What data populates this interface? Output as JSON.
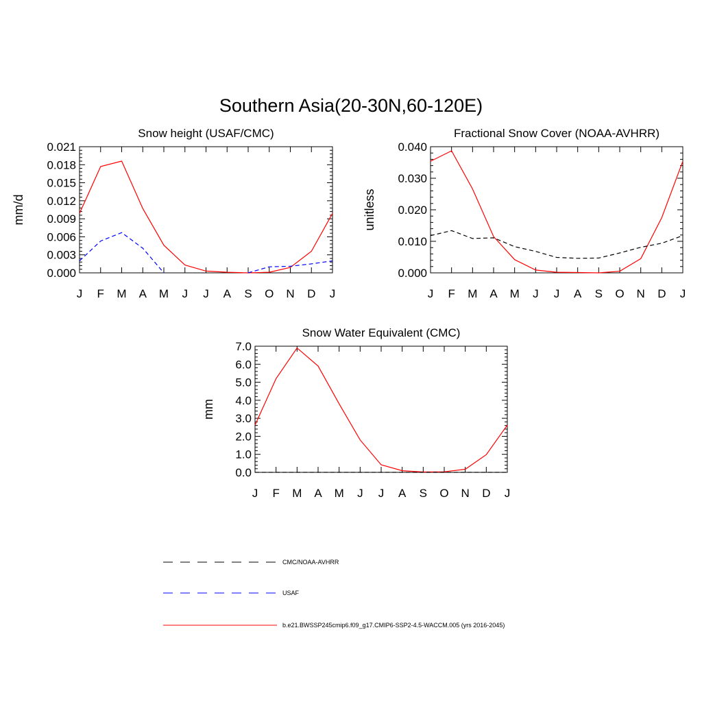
{
  "figure_title": "Southern Asia(20-30N,60-120E)",
  "months": [
    "J",
    "F",
    "M",
    "A",
    "M",
    "J",
    "J",
    "A",
    "S",
    "O",
    "N",
    "D",
    "J"
  ],
  "colors": {
    "model": "#ff0000",
    "usaf": "#0000ff",
    "obs": "#000000"
  },
  "legend": [
    {
      "label": "CMC/NOAA-AVHRR",
      "style": "dashed",
      "color": "#000000"
    },
    {
      "label": "USAF",
      "style": "dashed",
      "color": "#0000ff"
    },
    {
      "label": "b.e21.BWSSP245cmip6.f09_g17.CMIP6-SSP2-4.5-WACCM.005 (yrs 2016-2045)",
      "style": "solid",
      "color": "#ff0000"
    }
  ],
  "chart_data": [
    {
      "type": "line",
      "title": "Snow height (USAF/CMC)",
      "xlabel": "",
      "ylabel": "mm/d",
      "ylim": [
        0,
        0.021
      ],
      "yticks": [
        "0.000",
        "0.003",
        "0.006",
        "0.009",
        "0.012",
        "0.015",
        "0.018",
        "0.021"
      ],
      "x": [
        "J",
        "F",
        "M",
        "A",
        "M",
        "J",
        "J",
        "A",
        "S",
        "O",
        "N",
        "D",
        "J"
      ],
      "series": [
        {
          "role": "model",
          "style": "solid",
          "color": "#ff0000",
          "values": [
            0.0099,
            0.0177,
            0.0186,
            0.0107,
            0.0046,
            0.0013,
            0.0003,
            0.0001,
            0.0,
            0.0001,
            0.0009,
            0.0036,
            0.0099
          ]
        },
        {
          "role": "usaf",
          "style": "dashed",
          "color": "#0000ff",
          "values": [
            0.002,
            0.0053,
            0.0067,
            0.0041,
            0.0,
            null,
            null,
            null,
            0.0,
            0.001,
            0.0011,
            0.0015,
            0.002
          ]
        }
      ]
    },
    {
      "type": "line",
      "title": "Fractional Snow Cover (NOAA-AVHRR)",
      "xlabel": "",
      "ylabel": "unitless",
      "ylim": [
        0,
        0.04
      ],
      "yticks": [
        "0.000",
        "0.010",
        "0.020",
        "0.030",
        "0.040"
      ],
      "x": [
        "J",
        "F",
        "M",
        "A",
        "M",
        "J",
        "J",
        "A",
        "S",
        "O",
        "N",
        "D",
        "J"
      ],
      "series": [
        {
          "role": "model",
          "style": "solid",
          "color": "#ff0000",
          "values": [
            0.0354,
            0.0387,
            0.0266,
            0.0115,
            0.0042,
            0.0009,
            0.0002,
            0.0001,
            0.0,
            0.0005,
            0.0045,
            0.0175,
            0.0354
          ]
        },
        {
          "role": "obs",
          "style": "dashed",
          "color": "#000000",
          "values": [
            0.0118,
            0.0134,
            0.0109,
            0.0111,
            0.0083,
            0.0068,
            0.0049,
            0.0046,
            0.0047,
            0.0063,
            0.0081,
            0.0094,
            0.0118
          ]
        }
      ]
    },
    {
      "type": "line",
      "title": "Snow Water Equivalent (CMC)",
      "xlabel": "",
      "ylabel": "mm",
      "ylim": [
        0,
        7.0
      ],
      "yticks": [
        "0.0",
        "1.0",
        "2.0",
        "3.0",
        "4.0",
        "5.0",
        "6.0",
        "7.0"
      ],
      "x": [
        "J",
        "F",
        "M",
        "A",
        "M",
        "J",
        "J",
        "A",
        "S",
        "O",
        "N",
        "D",
        "J"
      ],
      "series": [
        {
          "role": "model",
          "style": "solid",
          "color": "#ff0000",
          "values": [
            2.62,
            5.2,
            6.9,
            5.9,
            3.8,
            1.8,
            0.42,
            0.09,
            0.02,
            0.03,
            0.17,
            0.98,
            2.62
          ]
        },
        {
          "role": "obs",
          "style": "dashed",
          "color": "#000000",
          "values": [
            0.0,
            0.0,
            0.0,
            0.0,
            0.0,
            0.0,
            0.0,
            0.0,
            0.0,
            0.0,
            0.0,
            0.0,
            0.0
          ]
        }
      ]
    }
  ]
}
